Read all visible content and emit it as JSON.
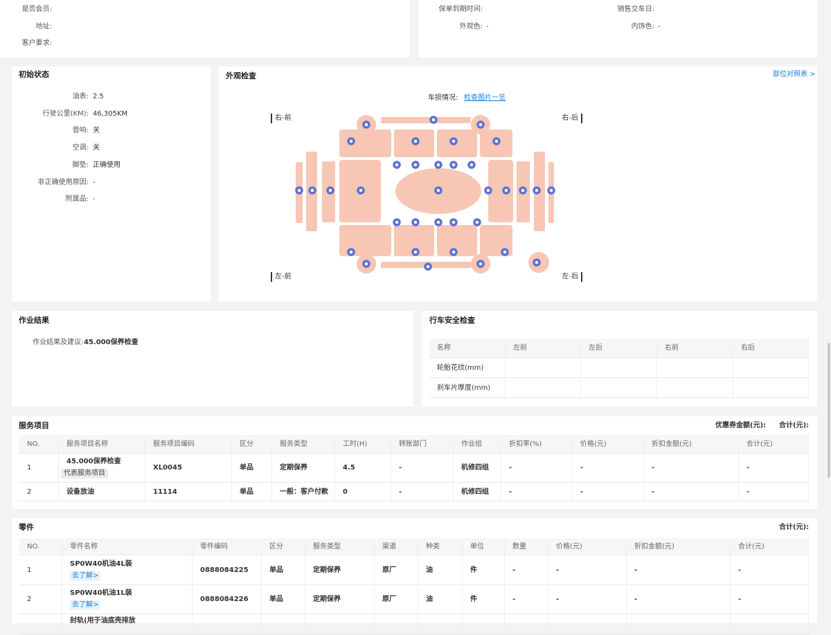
{
  "customer": {
    "fields": [
      {
        "label": "是否会员:"
      },
      {
        "label": "地址:"
      },
      {
        "label": "客户要求:"
      }
    ]
  },
  "vehicle": {
    "fields": [
      {
        "label": "保单到期时间:"
      },
      {
        "label": "销售交车日:"
      },
      {
        "label": "外观色:",
        "value": "-"
      },
      {
        "label": "内饰色:",
        "value": "-"
      }
    ]
  },
  "initial_state": {
    "title": "初始状态",
    "fields": [
      {
        "label": "油表:",
        "value": "2.5"
      },
      {
        "label": "行驶公里(KM):",
        "value": "46,305KM"
      },
      {
        "label": "音响:",
        "value": "关"
      },
      {
        "label": "空调:",
        "value": "关"
      },
      {
        "label": "脚垫:",
        "value": "正确使用"
      },
      {
        "label": "非正确使用原因:",
        "value": "-"
      },
      {
        "label": "附属品:",
        "value": "-"
      }
    ]
  },
  "exterior": {
    "title": "外观检查",
    "link": "部位对照表 >",
    "damage_label": "车损情况:",
    "damage_link": "检查图片一览",
    "corners": [
      "右-前",
      "右-后",
      "左-前",
      "左-后"
    ]
  },
  "work_result": {
    "title": "作业结果",
    "label": "作业结果及建议:",
    "value": "45.000保养检查"
  },
  "safety": {
    "title": "行车安全检查",
    "headers": [
      "名称",
      "左前",
      "左后",
      "右前",
      "右后"
    ],
    "rows": [
      [
        "轮胎花纹(mm)"
      ],
      [
        "刹车片厚度(mm)"
      ]
    ]
  },
  "services": {
    "title": "服务项目",
    "coupon_label": "优惠券金额(元):",
    "total_label": "合计(元):",
    "headers": [
      "NO.",
      "服务项目名称",
      "服务项目编码",
      "区分",
      "服务类型",
      "工时(H)",
      "转账部门",
      "作业组",
      "折扣率(%)",
      "价格(元)",
      "折扣金额(元)",
      "合计(元)"
    ],
    "rows": [
      {
        "cells": [
          "1",
          "45.000保养检查",
          "XL0045",
          "单品",
          "定期保养",
          "4.5",
          "-",
          "机修四组",
          "-",
          "-",
          "-",
          "-"
        ],
        "tag": "代表服务项目"
      },
      {
        "cells": [
          "2",
          "设备放油",
          "11114",
          "单品",
          "一般：客户付款",
          "0",
          "-",
          "机修四组",
          "-",
          "-",
          "-",
          "-"
        ]
      }
    ]
  },
  "parts": {
    "title": "零件",
    "total_label": "合计(元):",
    "headers": [
      "NO.",
      "零件名称",
      "零件编码",
      "区分",
      "服务类型",
      "渠道",
      "种类",
      "单位",
      "数量",
      "价格(元)",
      "折扣金额(元)",
      "合计(元)"
    ],
    "rows": [
      {
        "cells": [
          "1",
          "SP0W40机油4L装",
          "0888084225",
          "单品",
          "定期保养",
          "原厂",
          "油",
          "件",
          "-",
          "-",
          "-",
          "-"
        ],
        "link": "去了解>"
      },
      {
        "cells": [
          "2",
          "SP0W40机油1L装",
          "0888084226",
          "单品",
          "定期保养",
          "原厂",
          "油",
          "件",
          "-",
          "-",
          "-",
          "-"
        ],
        "link": "去了解>"
      }
    ],
    "clipped_row_name": "封轨(用于油底壳排放"
  }
}
